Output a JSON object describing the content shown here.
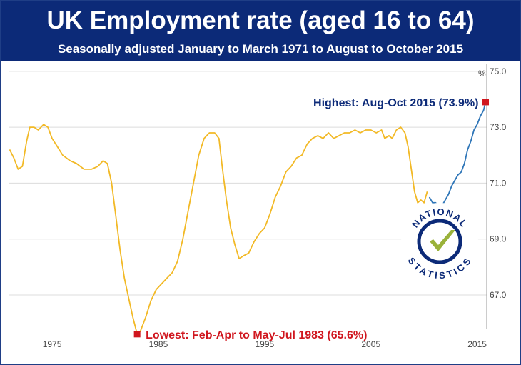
{
  "chart_data": {
    "type": "line",
    "title": "UK Employment rate (aged 16 to 64)",
    "subtitle": "Seasonally adjusted January to March 1971 to August to October 2015",
    "y_unit": "%",
    "ylim": [
      65.8,
      75.2
    ],
    "xlim": [
      1970.9,
      2015.9
    ],
    "yticks": [
      "75.0",
      "73.0",
      "71.0",
      "69.0",
      "67.0"
    ],
    "xticks": [
      "1975",
      "1985",
      "1995",
      "2005",
      "2015"
    ],
    "grid": true,
    "series": [
      {
        "color": "#f2b926",
        "points": [
          [
            1971.0,
            72.2
          ],
          [
            1971.4,
            71.9
          ],
          [
            1971.8,
            71.5
          ],
          [
            1972.2,
            71.6
          ],
          [
            1972.6,
            72.5
          ],
          [
            1972.9,
            73.0
          ],
          [
            1973.3,
            73.0
          ],
          [
            1973.7,
            72.9
          ],
          [
            1974.2,
            73.1
          ],
          [
            1974.6,
            73.0
          ],
          [
            1975.0,
            72.6
          ],
          [
            1975.5,
            72.3
          ],
          [
            1976.0,
            72.0
          ],
          [
            1976.7,
            71.8
          ],
          [
            1977.3,
            71.7
          ],
          [
            1978.0,
            71.5
          ],
          [
            1978.7,
            71.5
          ],
          [
            1979.3,
            71.6
          ],
          [
            1979.8,
            71.8
          ],
          [
            1980.2,
            71.7
          ],
          [
            1980.6,
            71.0
          ],
          [
            1981.0,
            69.8
          ],
          [
            1981.4,
            68.6
          ],
          [
            1981.8,
            67.6
          ],
          [
            1982.2,
            66.9
          ],
          [
            1982.6,
            66.2
          ],
          [
            1983.0,
            65.6
          ],
          [
            1983.3,
            65.7
          ],
          [
            1983.8,
            66.2
          ],
          [
            1984.3,
            66.8
          ],
          [
            1984.8,
            67.2
          ],
          [
            1985.3,
            67.4
          ],
          [
            1985.8,
            67.6
          ],
          [
            1986.3,
            67.8
          ],
          [
            1986.8,
            68.2
          ],
          [
            1987.3,
            69.0
          ],
          [
            1987.8,
            70.0
          ],
          [
            1988.3,
            71.0
          ],
          [
            1988.8,
            72.0
          ],
          [
            1989.3,
            72.6
          ],
          [
            1989.8,
            72.8
          ],
          [
            1990.3,
            72.8
          ],
          [
            1990.7,
            72.6
          ],
          [
            1991.0,
            71.6
          ],
          [
            1991.4,
            70.4
          ],
          [
            1991.8,
            69.4
          ],
          [
            1992.2,
            68.8
          ],
          [
            1992.6,
            68.3
          ],
          [
            1993.0,
            68.4
          ],
          [
            1993.5,
            68.5
          ],
          [
            1994.0,
            68.9
          ],
          [
            1994.5,
            69.2
          ],
          [
            1995.0,
            69.4
          ],
          [
            1995.5,
            69.9
          ],
          [
            1996.0,
            70.5
          ],
          [
            1996.5,
            70.9
          ],
          [
            1997.0,
            71.4
          ],
          [
            1997.5,
            71.6
          ],
          [
            1998.0,
            71.9
          ],
          [
            1998.5,
            72.0
          ],
          [
            1999.0,
            72.4
          ],
          [
            1999.5,
            72.6
          ],
          [
            2000.0,
            72.7
          ],
          [
            2000.5,
            72.6
          ],
          [
            2001.0,
            72.8
          ],
          [
            2001.5,
            72.6
          ],
          [
            2002.0,
            72.7
          ],
          [
            2002.5,
            72.8
          ],
          [
            2003.0,
            72.8
          ],
          [
            2003.5,
            72.9
          ],
          [
            2004.0,
            72.8
          ],
          [
            2004.5,
            72.9
          ],
          [
            2005.0,
            72.9
          ],
          [
            2005.5,
            72.8
          ],
          [
            2006.0,
            72.9
          ],
          [
            2006.3,
            72.6
          ],
          [
            2006.7,
            72.7
          ],
          [
            2007.0,
            72.6
          ],
          [
            2007.4,
            72.9
          ],
          [
            2007.8,
            73.0
          ],
          [
            2008.2,
            72.8
          ],
          [
            2008.5,
            72.3
          ],
          [
            2008.8,
            71.5
          ],
          [
            2009.1,
            70.7
          ],
          [
            2009.4,
            70.3
          ],
          [
            2009.7,
            70.4
          ],
          [
            2010.0,
            70.3
          ],
          [
            2010.3,
            70.7
          ]
        ]
      },
      {
        "color": "#2f76b8",
        "points": [
          [
            2010.5,
            70.5
          ],
          [
            2010.8,
            70.3
          ],
          [
            2011.1,
            70.3
          ],
          [
            2011.4,
            70.1
          ],
          [
            2011.7,
            70.2
          ],
          [
            2012.0,
            70.4
          ],
          [
            2012.3,
            70.6
          ],
          [
            2012.6,
            70.9
          ],
          [
            2012.9,
            71.1
          ],
          [
            2013.2,
            71.3
          ],
          [
            2013.5,
            71.4
          ],
          [
            2013.8,
            71.7
          ],
          [
            2014.1,
            72.2
          ],
          [
            2014.4,
            72.5
          ],
          [
            2014.7,
            72.9
          ],
          [
            2015.0,
            73.1
          ],
          [
            2015.3,
            73.4
          ],
          [
            2015.6,
            73.6
          ],
          [
            2015.8,
            73.9
          ]
        ]
      }
    ],
    "annotations": [
      {
        "text": "Highest: Aug-Oct 2015 (73.9%)",
        "x": 2015.8,
        "y": 73.9,
        "color": "#0c2a78"
      },
      {
        "text": "Lowest: Feb-Apr to May-Jul 1983 (65.6%)",
        "x": 1983.0,
        "y": 65.6,
        "color": "#d0161e"
      }
    ],
    "marker_color": "#d0161e"
  },
  "logo": {
    "top_text": "NATIONAL",
    "bottom_text": "STATISTICS",
    "ring_color": "#0c2a78",
    "check_color": "#9ab23a"
  }
}
